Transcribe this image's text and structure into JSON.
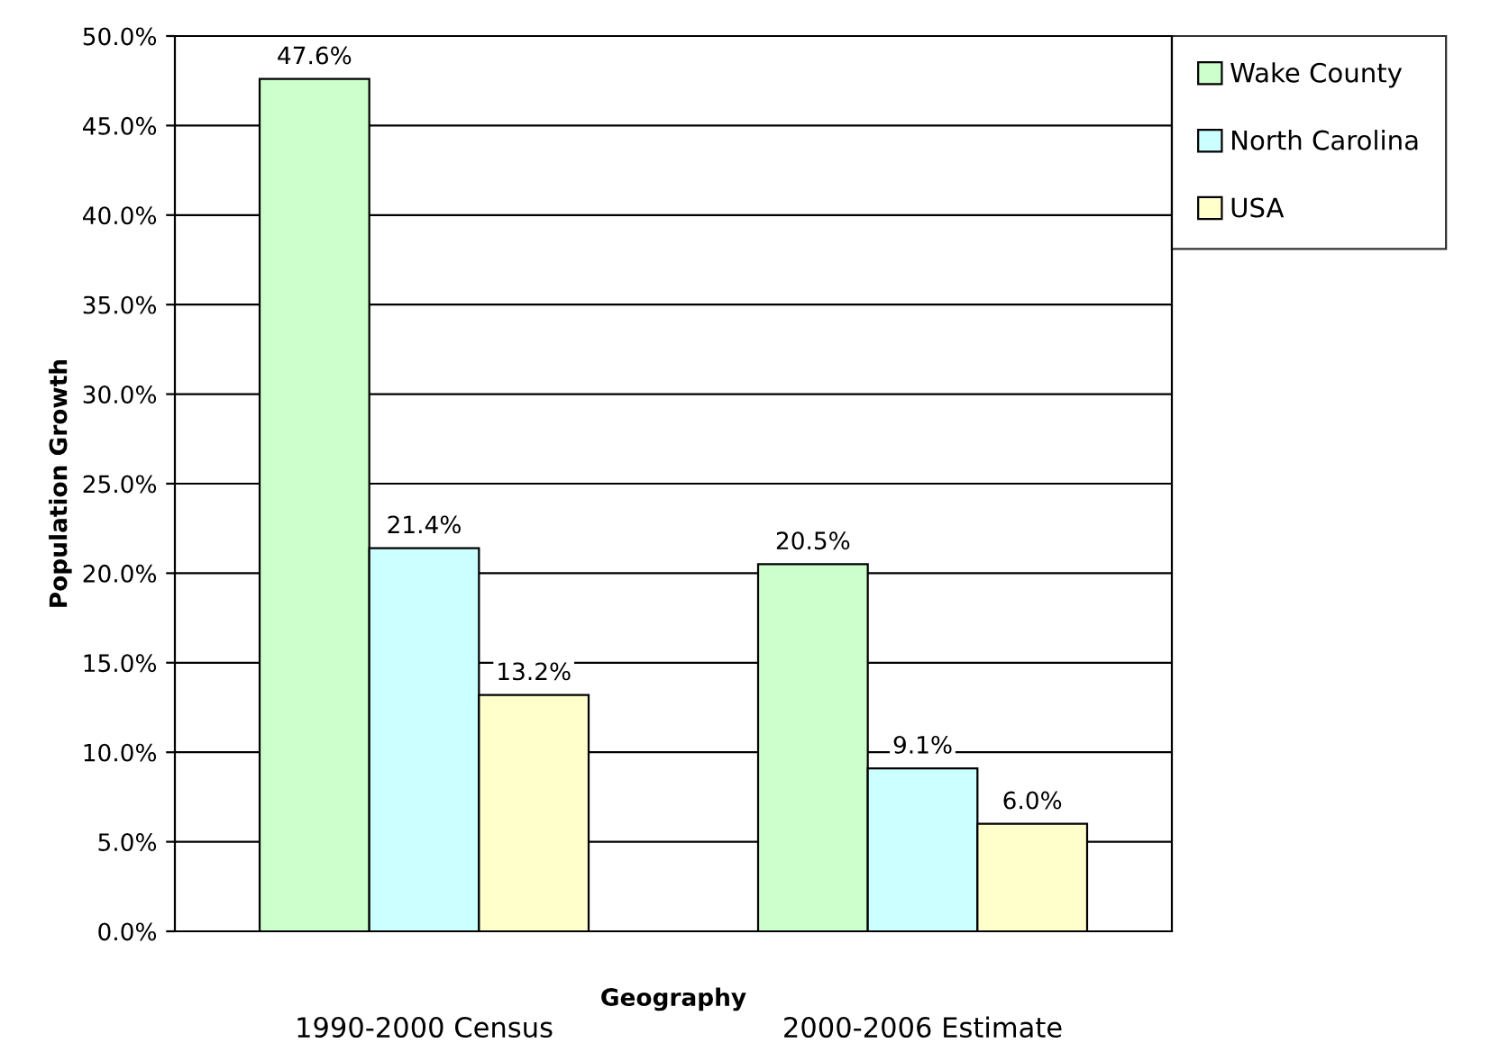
{
  "chart_data": {
    "type": "bar",
    "categories": [
      "1990-2000 Census",
      "2000-2006 Estimate"
    ],
    "xlabel": "Geography",
    "ylabel": "Population Growth",
    "series": [
      {
        "name": "Wake County",
        "color": "#ccffcc",
        "values": [
          47.6,
          20.5
        ],
        "value_labels": [
          "47.6%",
          "20.5%"
        ]
      },
      {
        "name": "North Carolina",
        "color": "#ccffff",
        "values": [
          21.4,
          9.1
        ],
        "value_labels": [
          "21.4%",
          "9.1%"
        ]
      },
      {
        "name": "USA",
        "color": "#ffffcc",
        "values": [
          13.2,
          6.0
        ],
        "value_labels": [
          "13.2%",
          "6.0%"
        ]
      }
    ],
    "ylim": [
      0,
      50
    ],
    "yticks": [
      {
        "value": 0,
        "label": "0.0%"
      },
      {
        "value": 5,
        "label": "5.0%"
      },
      {
        "value": 10,
        "label": "10.0%"
      },
      {
        "value": 15,
        "label": "15.0%"
      },
      {
        "value": 20,
        "label": "20.0%"
      },
      {
        "value": 25,
        "label": "25.0%"
      },
      {
        "value": 30,
        "label": "30.0%"
      },
      {
        "value": 35,
        "label": "35.0%"
      },
      {
        "value": 40,
        "label": "40.0%"
      },
      {
        "value": 45,
        "label": "45.0%"
      },
      {
        "value": 50,
        "label": "50.0%"
      }
    ],
    "grid": "y",
    "legend": "top right"
  }
}
